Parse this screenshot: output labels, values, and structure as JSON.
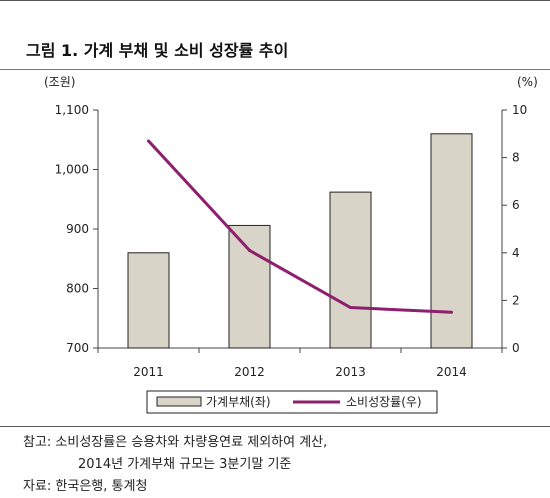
{
  "header": {
    "title": "그림 1. 가계 부채 및 소비 성장률 추이"
  },
  "chart_data": {
    "type": "bar",
    "categories": [
      "2011",
      "2012",
      "2013",
      "2014"
    ],
    "series": [
      {
        "name": "가계부채(좌)",
        "type": "bar",
        "axis": "left",
        "values": [
          860,
          906,
          962,
          1060
        ],
        "color": "#d9d4c8"
      },
      {
        "name": "소비성장률(우)",
        "type": "line",
        "axis": "right",
        "values": [
          8.7,
          4.1,
          1.7,
          1.5
        ],
        "color": "#8e1f6e"
      }
    ],
    "left_axis": {
      "unit_label": "(조원)",
      "ylim": [
        700,
        1100
      ],
      "ticks": [
        "700",
        "800",
        "900",
        "1,000",
        "1,100"
      ]
    },
    "right_axis": {
      "unit_label": "(%)",
      "ylim": [
        0,
        10
      ],
      "ticks": [
        "0",
        "2",
        "4",
        "6",
        "8",
        "10"
      ]
    },
    "grid": false,
    "legend_position": "bottom"
  },
  "notes": {
    "line1": "참고: 소비성장률은 승용차와 차량용연료 제외하여 계산,",
    "line2": "2014년 가계부채 규모는 3분기말 기준",
    "source": "자료: 한국은행, 통계청"
  }
}
